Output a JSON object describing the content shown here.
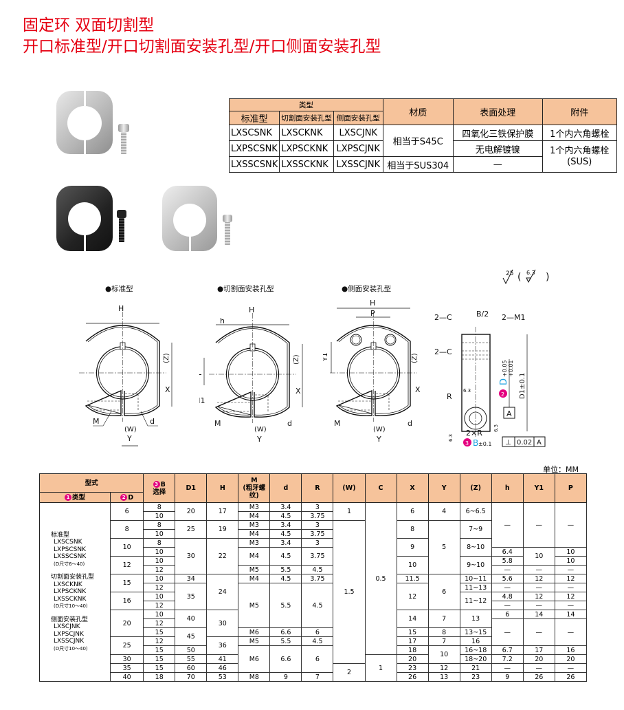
{
  "title": {
    "line1": "固定环 双面切割型",
    "line2": "开口标准型/开口切割面安装孔型/开口侧面安装孔型"
  },
  "type_table": {
    "header": {
      "type": "类型",
      "standard": "标准型",
      "cut_face": "切割面安装孔型",
      "side_face": "侧面安装孔型",
      "material": "材质",
      "surface": "表面处理",
      "accessory": "附件"
    },
    "rows": [
      {
        "standard": "LXSCSNK",
        "cut_face": "LXSCKNK",
        "side_face": "LXSCJNK"
      },
      {
        "standard": "LXPSCSNK",
        "cut_face": "LXPSCKNK",
        "side_face": "LXPSCJNK"
      },
      {
        "standard": "LXSSCSNK",
        "cut_face": "LXSSCKNK",
        "side_face": "LXSSCJNK"
      }
    ],
    "materials": [
      "相当于S45C",
      "相当于SUS304"
    ],
    "surfaces": [
      "四氧化三铁保护膜",
      "无电解镀镍",
      "—"
    ],
    "accessories": [
      "1个内六角螺栓",
      "1个内六角螺栓\n(SUS)"
    ]
  },
  "drawings": {
    "roughness": {
      "main": "25",
      "paren_open": "(",
      "inner": "6.3",
      "paren_close": ")"
    },
    "titles": [
      "●标准型",
      "●切割面安装孔型",
      "●侧面安装孔型"
    ],
    "labels": {
      "H": "H",
      "Z": "(Z)",
      "X": "X",
      "M": "M",
      "d": "d",
      "W": "(W)",
      "Y": "Y",
      "h": "h",
      "P": "P",
      "M1": "2—M1",
      "Y1": "Y1",
      "C": "2—C",
      "B2": "B/2",
      "R": "R",
      "R6": "6.3",
      "tol_D": "+0.05\n+0.01",
      "D": "D",
      "D1": "D1±0.1",
      "A": "A",
      "twoR": "2×R",
      "B": "B",
      "B_tol": "±0.1",
      "flat_sym": "⊥",
      "flat_val": "0.02",
      "flat_ref": "A",
      "n2": "2",
      "n3": "3",
      "rough": "6.3"
    }
  },
  "spec_table": {
    "unit": "单位：MM",
    "headers": {
      "model": "型式",
      "type": "类型",
      "D": "D",
      "B": "B",
      "B_sub": "选择",
      "D1": "D1",
      "H": "H",
      "M": "M",
      "M_sub": "(粗牙螺纹)",
      "d": "d",
      "R": "R",
      "W": "(W)",
      "C": "C",
      "X": "X",
      "Y": "Y",
      "Z": "(Z)",
      "h": "h",
      "Y1": "Y1",
      "P": "P",
      "n1": "1",
      "n2": "2",
      "n3": "3"
    },
    "type_text": [
      "标准型",
      "LXSCSNK",
      "LXPSCSNK",
      "LXSSCSNK",
      "(D尺寸6～40)",
      "",
      "切割面安装孔型",
      "LXSCKNK",
      "LXPSCKNK",
      "LXSSCKNK",
      "(D尺寸10～40)",
      "",
      "侧面安装孔型",
      "LXSCJNK",
      "LXPSCJNK",
      "LXSSCJNK",
      "(D尺寸10～40)"
    ],
    "rows": [
      [
        "6",
        "8",
        "20",
        "17",
        "M3",
        "3.4",
        "3",
        "1",
        "0.5",
        "6",
        "4",
        "6~6.5",
        "—",
        "—",
        "—"
      ],
      [
        "10",
        "M4",
        "4.5",
        "3.75"
      ],
      [
        "8",
        "8",
        "25",
        "19",
        "M3",
        "3.4",
        "3",
        "1.5",
        "8",
        "5",
        "7~9"
      ],
      [
        "10",
        "M4",
        "4.5",
        "3.75"
      ],
      [
        "10",
        "8",
        "30",
        "22",
        "M3",
        "3.4",
        "3",
        "9",
        "8~10"
      ],
      [
        "10",
        "M4",
        "4.5",
        "3.75",
        "6.4",
        "10",
        "10"
      ],
      [
        "12",
        "10",
        "10",
        "9~10",
        "5.8",
        "10"
      ],
      [
        "12",
        "M5",
        "5.5",
        "4.5",
        "—",
        "—",
        "—"
      ],
      [
        "15",
        "10",
        "34",
        "24",
        "M4",
        "4.5",
        "3.75",
        "11.5",
        "6",
        "10~11",
        "5.6",
        "12",
        "12"
      ],
      [
        "12",
        "35",
        "M5",
        "5.5",
        "4.5",
        "12",
        "11~13",
        "—",
        "—",
        "—"
      ],
      [
        "16",
        "10",
        "11~12",
        "4.8",
        "12",
        "12"
      ],
      [
        "12",
        "—",
        "—",
        "—"
      ],
      [
        "20",
        "10",
        "40",
        "30",
        "14",
        "7",
        "13",
        "6",
        "14",
        "14"
      ],
      [
        "12",
        "—",
        "—",
        "—"
      ],
      [
        "15",
        "45",
        "M6",
        "6.6",
        "6",
        "15",
        "8",
        "13~15"
      ],
      [
        "25",
        "12",
        "36",
        "M5",
        "5.5",
        "4.5",
        "17",
        "7",
        "16"
      ],
      [
        "15",
        "50",
        "M6",
        "6.6",
        "6",
        "18",
        "10",
        "16~18",
        "6.7",
        "17",
        "16"
      ],
      [
        "30",
        "15",
        "55",
        "41",
        "1",
        "20",
        "18~20",
        "7.2",
        "20",
        "20"
      ],
      [
        "35",
        "15",
        "60",
        "46",
        "2",
        "23",
        "12",
        "21",
        "—",
        "—",
        "—"
      ],
      [
        "40",
        "18",
        "70",
        "53",
        "M8",
        "9",
        "7",
        "26",
        "13",
        "23",
        "9",
        "26",
        "26"
      ]
    ]
  },
  "colors": {
    "title": "#e50012",
    "header_bg": "#f6c39b",
    "badge": "#e4007f",
    "accent_blue": "#1aa0e0"
  }
}
